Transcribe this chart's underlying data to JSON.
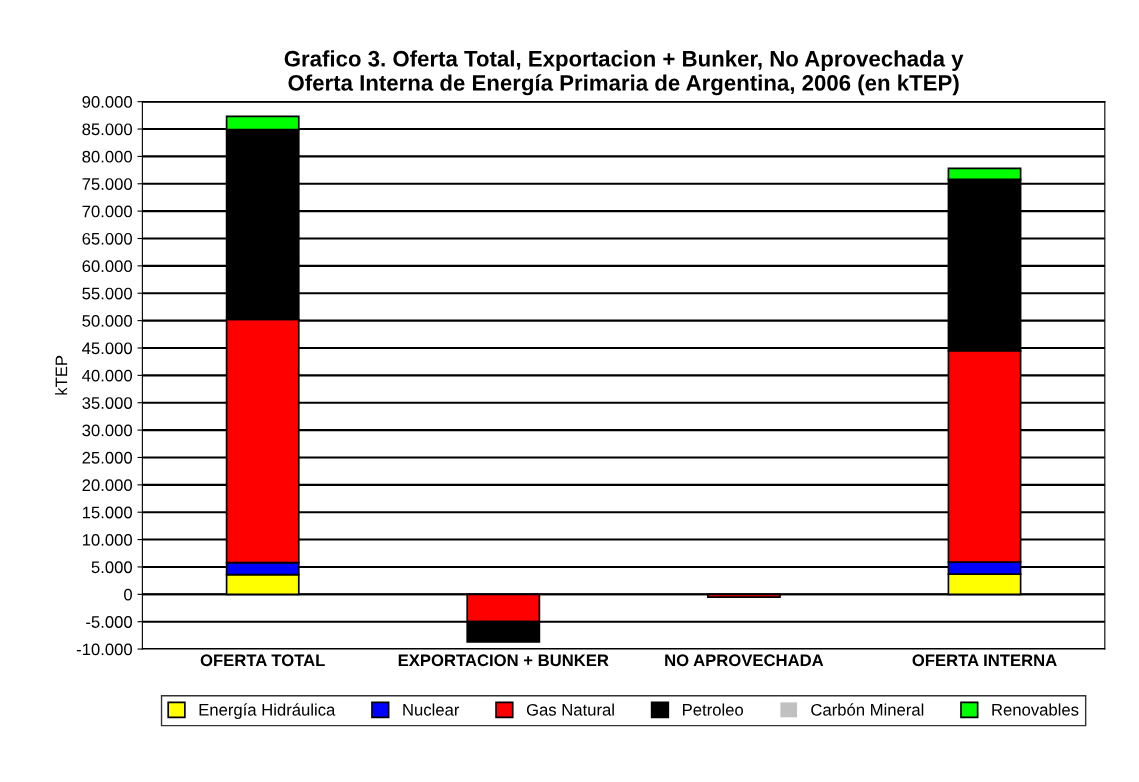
{
  "chart_data": {
    "type": "bar",
    "stacked": true,
    "title": "Grafico 3. Oferta Total, Exportacion + Bunker, No Aprovechada y\nOferta Interna de Energía Primaria de Argentina, 2006 (en kTEP)",
    "ylabel": "kTEP",
    "categories": [
      "OFERTA TOTAL",
      "EXPORTACION + BUNKER",
      "NO APROVECHADA",
      "OFERTA INTERNA"
    ],
    "series": [
      {
        "name": "Energía Hidráulica",
        "color": "#ffff00",
        "values": [
          3600,
          0,
          0,
          3700
        ]
      },
      {
        "name": "Nuclear",
        "color": "#0000ff",
        "values": [
          2200,
          0,
          0,
          2200
        ]
      },
      {
        "name": "Gas Natural",
        "color": "#ff0000",
        "values": [
          44400,
          -5000,
          -500,
          38600
        ]
      },
      {
        "name": "Petroleo",
        "color": "#000000",
        "values": [
          34700,
          -3700,
          0,
          31300
        ]
      },
      {
        "name": "Carbón Mineral",
        "color": "#c0c0c0",
        "values": [
          0,
          0,
          0,
          0
        ]
      },
      {
        "name": "Renovables",
        "color": "#00ff00",
        "values": [
          2400,
          0,
          0,
          2000
        ]
      }
    ],
    "ylim": [
      -10000,
      90000
    ],
    "yticks": [
      {
        "value": -10000,
        "label": "-10.000"
      },
      {
        "value": -5000,
        "label": "-5.000"
      },
      {
        "value": 0,
        "label": "0"
      },
      {
        "value": 5000,
        "label": "5.000"
      },
      {
        "value": 10000,
        "label": "10.000"
      },
      {
        "value": 15000,
        "label": "15.000"
      },
      {
        "value": 20000,
        "label": "20.000"
      },
      {
        "value": 25000,
        "label": "25.000"
      },
      {
        "value": 30000,
        "label": "30.000"
      },
      {
        "value": 35000,
        "label": "35.000"
      },
      {
        "value": 40000,
        "label": "40.000"
      },
      {
        "value": 45000,
        "label": "45.000"
      },
      {
        "value": 50000,
        "label": "50.000"
      },
      {
        "value": 55000,
        "label": "55.000"
      },
      {
        "value": 60000,
        "label": "60.000"
      },
      {
        "value": 65000,
        "label": "65.000"
      },
      {
        "value": 70000,
        "label": "70.000"
      },
      {
        "value": 75000,
        "label": "75.000"
      },
      {
        "value": 80000,
        "label": "80.000"
      },
      {
        "value": 85000,
        "label": "85.000"
      },
      {
        "value": 90000,
        "label": "90.000"
      }
    ],
    "grid": "y",
    "legend": "bottom"
  }
}
